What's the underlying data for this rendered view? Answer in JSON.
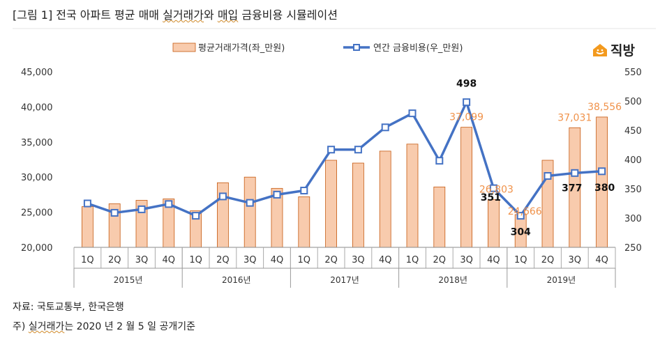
{
  "title": {
    "prefix": "[그림 1] 전국 아파트 평균 매매 ",
    "highlight1": "실거래가",
    "middle": "와 ",
    "highlight2": "매입",
    "suffix": " 금융비용 시뮬레이션"
  },
  "brand": {
    "name": "직방",
    "icon": "house-logo-icon",
    "color": "#f39a1e"
  },
  "notes": {
    "source": "자료: 국토교통부, 한국은행",
    "footnote_prefix": "주) ",
    "footnote_highlight": "실거래가",
    "footnote_suffix": "는 2020 년 2 월 5 일 공개기준"
  },
  "chart_data": {
    "type": "bar+line",
    "categories": [
      "1Q",
      "2Q",
      "3Q",
      "4Q",
      "1Q",
      "2Q",
      "3Q",
      "4Q",
      "1Q",
      "2Q",
      "3Q",
      "4Q",
      "1Q",
      "2Q",
      "3Q",
      "4Q",
      "1Q",
      "2Q",
      "3Q",
      "4Q"
    ],
    "years": [
      "2015년",
      "2016년",
      "2017년",
      "2018년",
      "2019년"
    ],
    "series": [
      {
        "name": "평균거래가격(좌_만원)",
        "kind": "bar",
        "axis": "left",
        "color": "#f8cbad",
        "stroke": "#c55a11",
        "values": [
          25800,
          26200,
          26700,
          26900,
          25200,
          29200,
          30000,
          28400,
          27200,
          32400,
          32000,
          33700,
          34700,
          28600,
          37099,
          26803,
          24666,
          32400,
          37031,
          38556
        ]
      },
      {
        "name": "연간 금융비용(우_만원)",
        "kind": "line",
        "axis": "right",
        "color": "#4472c4",
        "values": [
          325,
          309,
          315,
          324,
          304,
          337,
          326,
          340,
          347,
          417,
          417,
          455,
          479,
          398,
          498,
          351,
          304,
          372,
          377,
          380
        ]
      }
    ],
    "y_left": {
      "min": 20000,
      "max": 45000,
      "ticks": [
        "20,000",
        "25,000",
        "30,000",
        "35,000",
        "40,000",
        "45,000"
      ]
    },
    "y_right": {
      "min": 250,
      "max": 550,
      "ticks": [
        "250",
        "300",
        "350",
        "400",
        "450",
        "500",
        "550"
      ]
    },
    "data_labels": {
      "bar": [
        {
          "index": 14,
          "text": "37,099"
        },
        {
          "index": 15,
          "text": "26,803"
        },
        {
          "index": 16,
          "text": "24,666"
        },
        {
          "index": 18,
          "text": "37,031"
        },
        {
          "index": 19,
          "text": "38,556"
        }
      ],
      "line": [
        {
          "index": 14,
          "text": "498"
        },
        {
          "index": 15,
          "text": "351"
        },
        {
          "index": 16,
          "text": "304"
        },
        {
          "index": 18,
          "text": "377"
        },
        {
          "index": 19,
          "text": "380"
        }
      ]
    },
    "legend": "top",
    "grid": false
  }
}
